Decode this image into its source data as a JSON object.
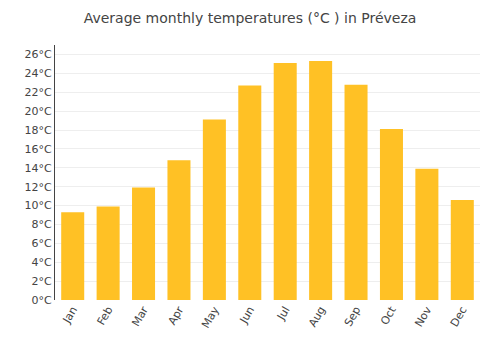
{
  "chart_data": {
    "type": "bar",
    "title": "Average monthly temperatures (°C ) in Préveza",
    "categories": [
      "Jan",
      "Feb",
      "Mar",
      "Apr",
      "May",
      "Jun",
      "Jul",
      "Aug",
      "Sep",
      "Oct",
      "Nov",
      "Dec"
    ],
    "values": [
      9.3,
      9.9,
      11.9,
      14.8,
      19.1,
      22.7,
      25.1,
      25.3,
      22.8,
      18.1,
      13.9,
      10.6
    ],
    "color": "#FFC125",
    "ylim": [
      0,
      27
    ],
    "yticks": [
      {
        "value": 0,
        "label": "0°C"
      },
      {
        "value": 2,
        "label": "2°C"
      },
      {
        "value": 4,
        "label": "4°C"
      },
      {
        "value": 6,
        "label": "6°C"
      },
      {
        "value": 8,
        "label": "8°C"
      },
      {
        "value": 10,
        "label": "10°C"
      },
      {
        "value": 12,
        "label": "12°C"
      },
      {
        "value": 14,
        "label": "14°C"
      },
      {
        "value": 16,
        "label": "16°C"
      },
      {
        "value": 18,
        "label": "18°C"
      },
      {
        "value": 20,
        "label": "20°C"
      },
      {
        "value": 22,
        "label": "22°C"
      },
      {
        "value": 24,
        "label": "24°C"
      },
      {
        "value": 26,
        "label": "26°C"
      }
    ],
    "grid": true
  }
}
